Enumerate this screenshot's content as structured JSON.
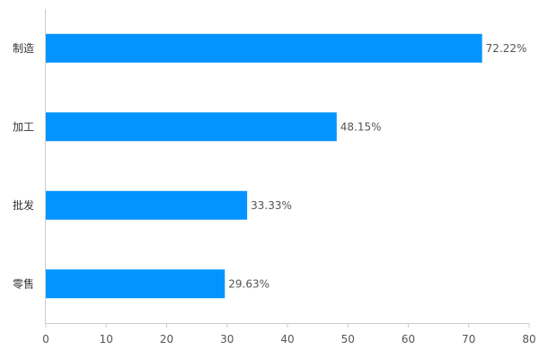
{
  "chart_data": {
    "type": "bar",
    "orientation": "horizontal",
    "categories": [
      "制造",
      "加工",
      "批发",
      "零售"
    ],
    "values": [
      72.22,
      48.15,
      33.33,
      29.63
    ],
    "data_labels": [
      "72.22%",
      "48.15%",
      "33.33%",
      "29.63%"
    ],
    "title": "",
    "xlabel": "",
    "ylabel": "",
    "xlim": [
      0,
      80
    ],
    "x_ticks": [
      0,
      10,
      20,
      30,
      40,
      50,
      60,
      70,
      80
    ],
    "grid": false,
    "legend": "none",
    "bar_color": "#0394ff"
  }
}
